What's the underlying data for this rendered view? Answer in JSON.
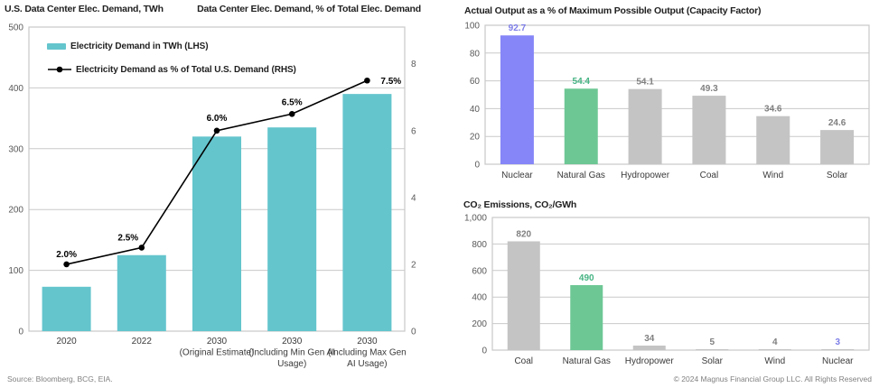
{
  "page": {
    "footer_left": "Source: Bloomberg, BCG, EIA.",
    "footer_right": "© 2024 Magnus Financial Group LLC. All Rights Reserved"
  },
  "colors": {
    "teal": "#64C5CD",
    "purple": "#8686F8",
    "green": "#6DC794",
    "gray": "#C4C4C4",
    "label_purple": "#7D7DE8",
    "label_green": "#45B383",
    "label_gray": "#7F7F7F",
    "line": "#000000",
    "grid": "#C9C9C9",
    "axis_text": "#595959"
  },
  "chart_data": [
    {
      "id": "demand_combo",
      "type": "bar+line",
      "title_left": "U.S. Data Center Elec. Demand, TWh",
      "title_right": "Data Center Elec. Demand, % of Total Elec. Demand",
      "categories": [
        [
          "2020"
        ],
        [
          "2022"
        ],
        [
          "2030",
          "(Original Estimate)"
        ],
        [
          "2030",
          "(Including Min Gen AI",
          "Usage)"
        ],
        [
          "2030",
          "(Including Max Gen",
          "AI Usage)"
        ]
      ],
      "bar_series": {
        "name": "Electricity Demand in TWh (LHS)",
        "values": [
          73,
          125,
          320,
          335,
          390
        ]
      },
      "line_series": {
        "name": "Electricity Demand as % of Total U.S. Demand (RHS)",
        "values": [
          2.0,
          2.5,
          6.0,
          6.5,
          7.5
        ],
        "labels": [
          "2.0%",
          "2.5%",
          "6.0%",
          "6.5%",
          "7.5%"
        ]
      },
      "left_axis": {
        "min": 0,
        "max": 500,
        "ticks": [
          0,
          100,
          200,
          300,
          400,
          500
        ]
      },
      "right_axis": {
        "min": 0,
        "max": 9.1,
        "ticks": [
          0,
          2,
          4,
          6,
          8
        ]
      },
      "legend_position": "top-left-inside",
      "grid": true
    },
    {
      "id": "capacity_factor",
      "type": "bar",
      "title": "Actual Output as a % of Maximum Possible Output (Capacity Factor)",
      "categories": [
        "Nuclear",
        "Natural Gas",
        "Hydropower",
        "Coal",
        "Wind",
        "Solar"
      ],
      "values": [
        92.7,
        54.4,
        54.1,
        49.3,
        34.6,
        24.6
      ],
      "labels": [
        "92.7",
        "54.4",
        "54.1",
        "49.3",
        "34.6",
        "24.6"
      ],
      "bar_colors": [
        "purple",
        "green",
        "gray",
        "gray",
        "gray",
        "gray"
      ],
      "label_colors": [
        "label_purple",
        "label_green",
        "label_gray",
        "label_gray",
        "label_gray",
        "label_gray"
      ],
      "ylim": [
        0,
        100
      ],
      "yticks": [
        0,
        20,
        40,
        60,
        80,
        100
      ],
      "grid": true
    },
    {
      "id": "co2_emissions",
      "type": "bar",
      "title": "CO₂ Emissions, CO₂/GWh",
      "categories": [
        "Coal",
        "Natural Gas",
        "Hydropower",
        "Solar",
        "Wind",
        "Nuclear"
      ],
      "values": [
        820,
        490,
        34,
        5,
        4,
        3
      ],
      "labels": [
        "820",
        "490",
        "34",
        "5",
        "4",
        "3"
      ],
      "bar_colors": [
        "gray",
        "green",
        "gray",
        "gray",
        "gray",
        "gray"
      ],
      "label_colors": [
        "label_gray",
        "label_green",
        "label_gray",
        "label_gray",
        "label_gray",
        "label_purple"
      ],
      "ylim": [
        0,
        1000
      ],
      "yticks": [
        0,
        200,
        400,
        600,
        800,
        1000
      ],
      "ytick_labels": [
        "0",
        "200",
        "400",
        "600",
        "800",
        "1,000"
      ],
      "grid": true
    }
  ]
}
